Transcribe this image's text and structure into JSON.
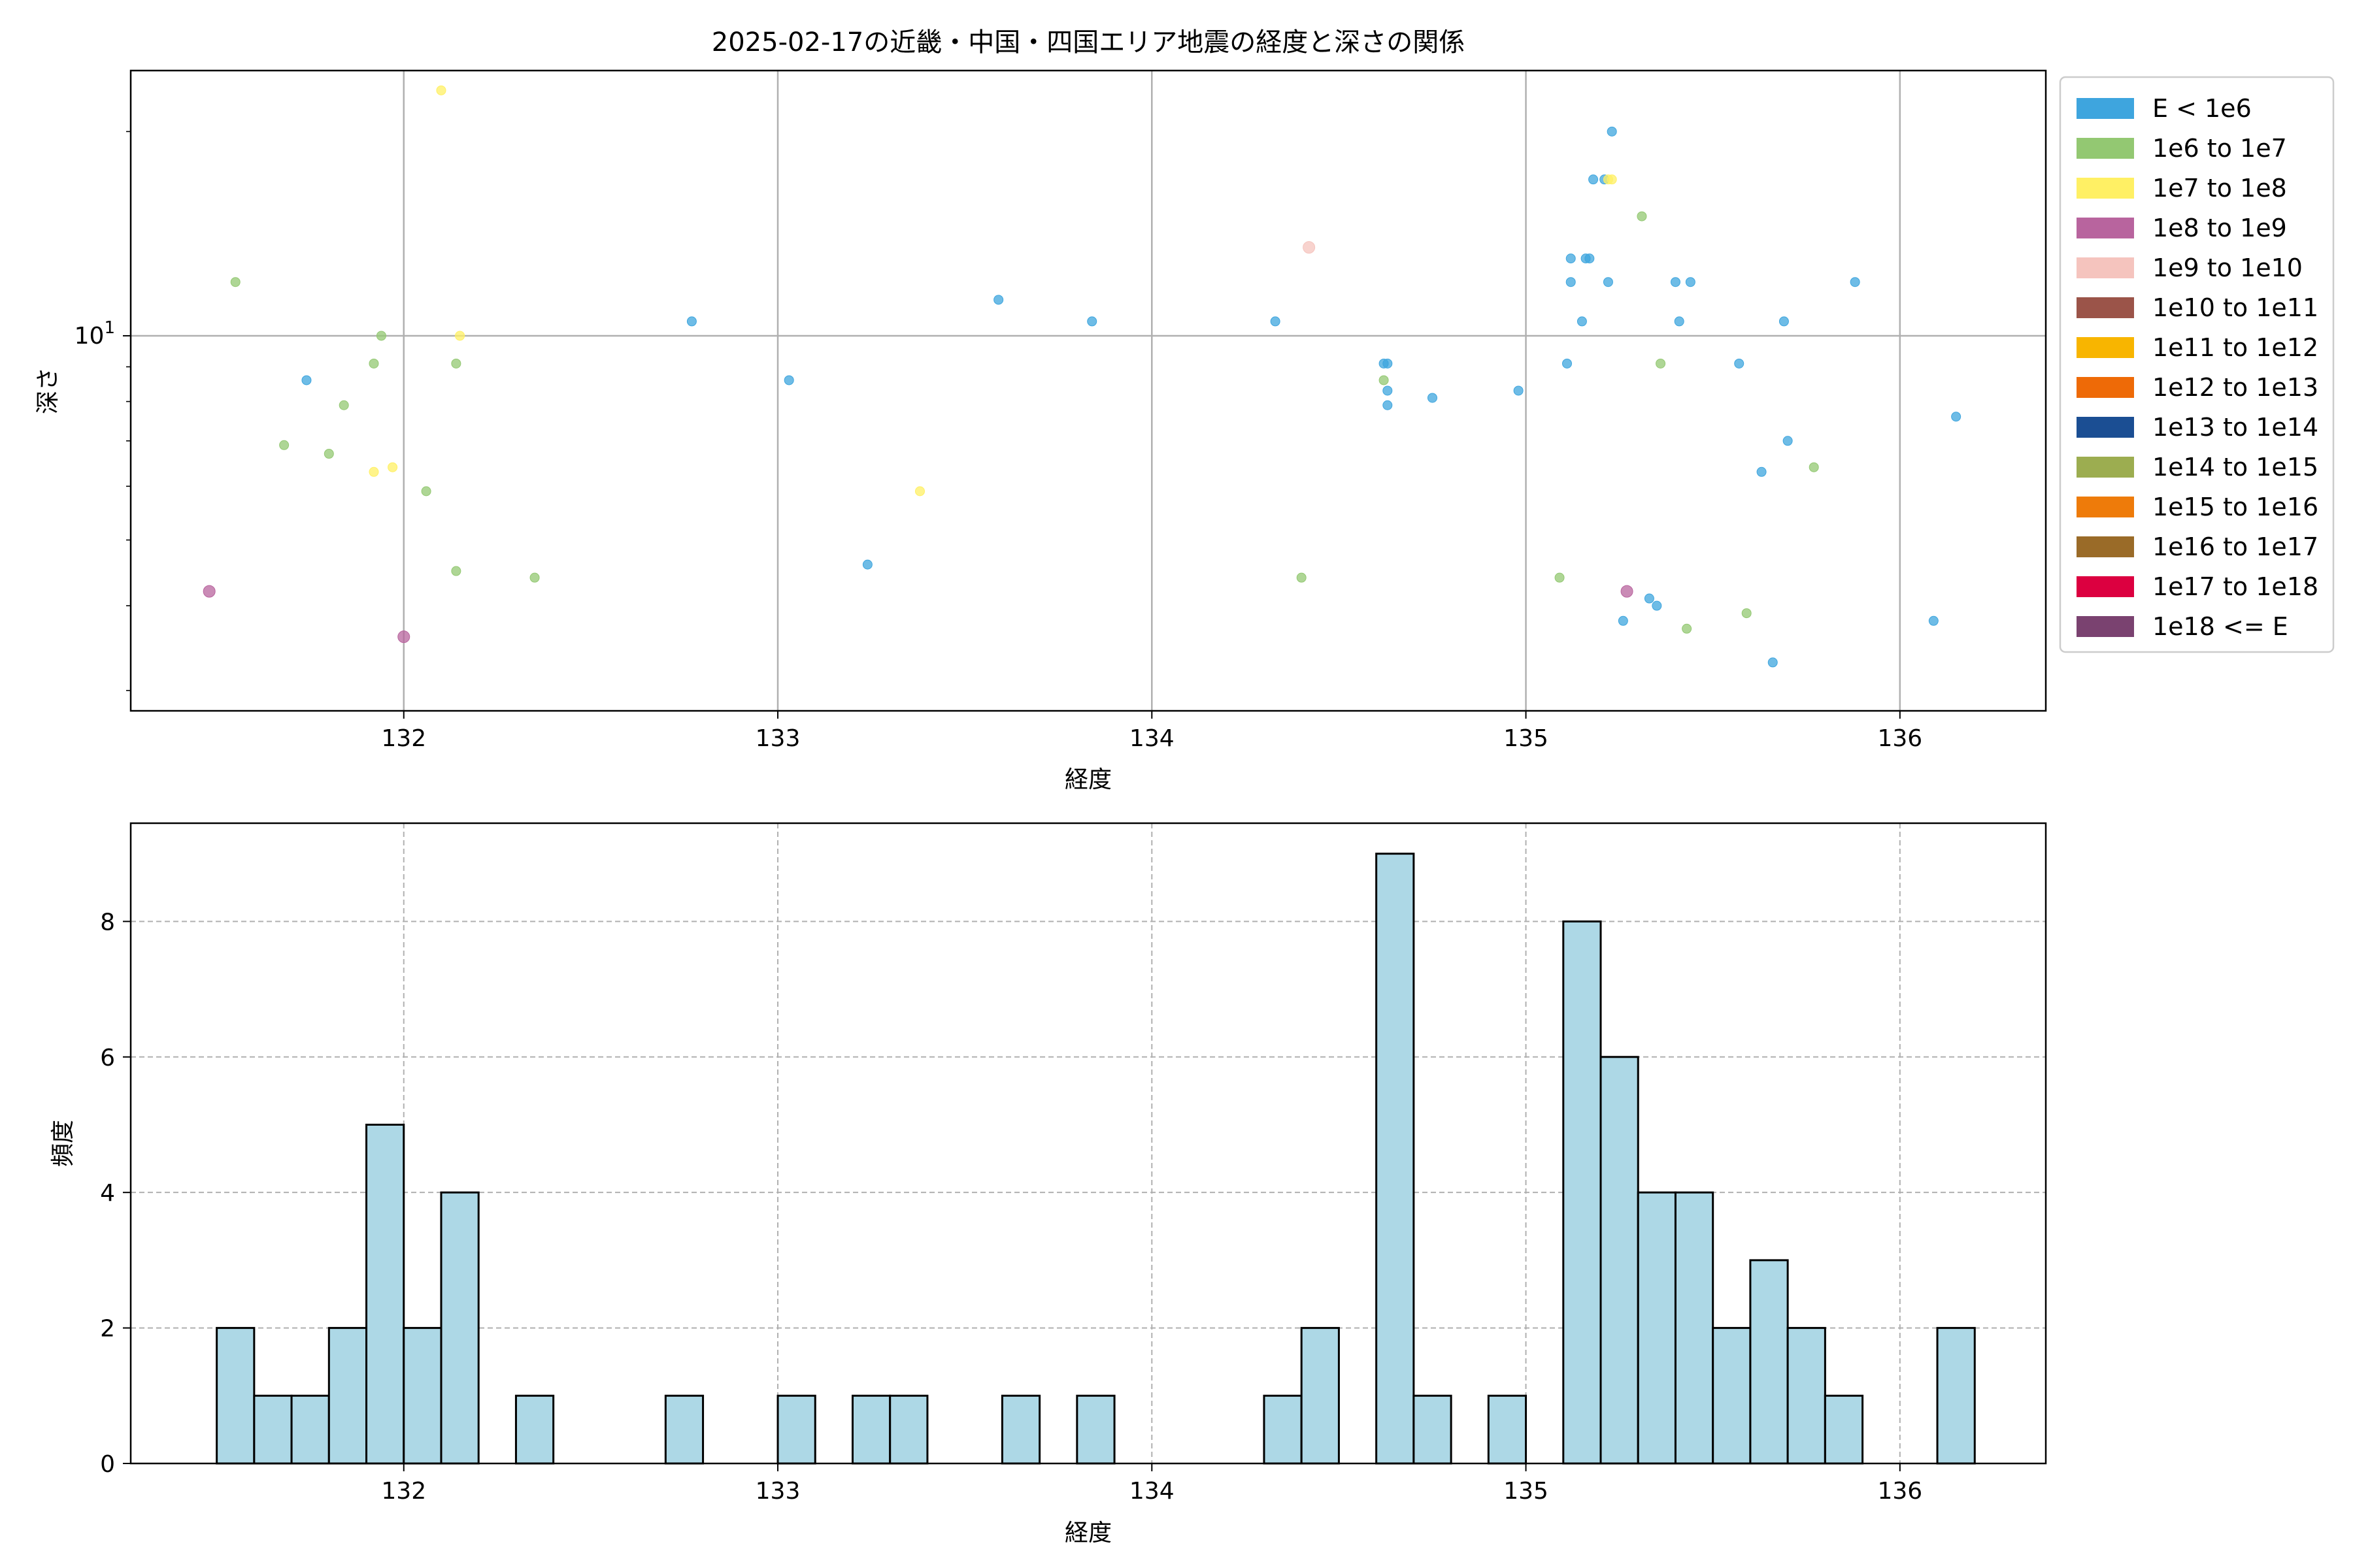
{
  "chart_data": [
    {
      "type": "scatter",
      "title": "2025-02-17の近畿・中国・四国エリア地震の経度と深さの関係",
      "xlabel": "経度",
      "ylabel": "深さ",
      "xlim": [
        131.27,
        136.39
      ],
      "ylim": [
        2.8,
        24.6
      ],
      "yscale": "log",
      "y_tick_label": "10",
      "y_tick_sup": "1",
      "grid": true,
      "legend_position": "outside-right",
      "legend": [
        {
          "label": "E < 1e6",
          "color": "#3ea5de"
        },
        {
          "label": "1e6 to 1e7",
          "color": "#93c872"
        },
        {
          "label": "1e7 to 1e8",
          "color": "#fff064"
        },
        {
          "label": "1e8 to 1e9",
          "color": "#b8649e"
        },
        {
          "label": "1e9 to 1e10",
          "color": "#f5c4be"
        },
        {
          "label": "1e10 to 1e11",
          "color": "#9b5449"
        },
        {
          "label": "1e11 to 1e12",
          "color": "#f8b500"
        },
        {
          "label": "1e12 to 1e13",
          "color": "#ee6a07"
        },
        {
          "label": "1e13 to 1e14",
          "color": "#1b4e93"
        },
        {
          "label": "1e14 to 1e15",
          "color": "#9cad50"
        },
        {
          "label": "1e15 to 1e16",
          "color": "#ee7b0a"
        },
        {
          "label": "1e16 to 1e17",
          "color": "#9a6b28"
        },
        {
          "label": "1e17 to 1e18",
          "color": "#dc0040"
        },
        {
          "label": "1e18 <= E",
          "color": "#7a4270"
        }
      ],
      "series": [
        {
          "class": 0,
          "points": [
            [
              131.74,
              8.6
            ],
            [
              132.77,
              10.5
            ],
            [
              133.03,
              8.6
            ],
            [
              133.24,
              4.6
            ],
            [
              133.59,
              11.3
            ],
            [
              133.84,
              10.5
            ],
            [
              134.33,
              10.5
            ],
            [
              134.62,
              9.1
            ],
            [
              134.63,
              9.1
            ],
            [
              134.63,
              8.3
            ],
            [
              134.63,
              7.9
            ],
            [
              134.75,
              8.1
            ],
            [
              134.98,
              8.3
            ],
            [
              135.11,
              9.1
            ],
            [
              135.12,
              12.0
            ],
            [
              135.12,
              13.0
            ],
            [
              135.15,
              10.5
            ],
            [
              135.16,
              13.0
            ],
            [
              135.17,
              13.0
            ],
            [
              135.18,
              17.0
            ],
            [
              135.21,
              17.0
            ],
            [
              135.22,
              12.0
            ],
            [
              135.23,
              20.0
            ],
            [
              135.26,
              3.8
            ],
            [
              135.33,
              4.1
            ],
            [
              135.35,
              4.0
            ],
            [
              135.4,
              12.0
            ],
            [
              135.41,
              10.5
            ],
            [
              135.44,
              12.0
            ],
            [
              135.57,
              9.1
            ],
            [
              135.63,
              6.3
            ],
            [
              135.66,
              3.3
            ],
            [
              135.69,
              10.5
            ],
            [
              135.7,
              7.0
            ],
            [
              135.88,
              12.0
            ],
            [
              136.09,
              3.8
            ],
            [
              136.15,
              7.6
            ]
          ]
        },
        {
          "class": 1,
          "points": [
            [
              131.55,
              12.0
            ],
            [
              131.68,
              6.9
            ],
            [
              131.8,
              6.7
            ],
            [
              131.84,
              7.9
            ],
            [
              131.92,
              9.1
            ],
            [
              131.94,
              10.0
            ],
            [
              132.06,
              5.9
            ],
            [
              132.14,
              9.1
            ],
            [
              132.14,
              4.5
            ],
            [
              132.35,
              4.4
            ],
            [
              134.4,
              4.4
            ],
            [
              134.62,
              8.6
            ],
            [
              135.09,
              4.4
            ],
            [
              135.31,
              15.0
            ],
            [
              135.36,
              9.1
            ],
            [
              135.43,
              3.7
            ],
            [
              135.59,
              3.9
            ],
            [
              135.77,
              6.4
            ]
          ]
        },
        {
          "class": 2,
          "points": [
            [
              131.92,
              6.3
            ],
            [
              131.97,
              6.4
            ],
            [
              132.1,
              23.0
            ],
            [
              132.15,
              10.0
            ],
            [
              133.38,
              5.9
            ],
            [
              135.22,
              17.0
            ],
            [
              135.23,
              17.0
            ]
          ]
        },
        {
          "class": 3,
          "points": [
            [
              131.48,
              4.2
            ],
            [
              132.0,
              3.6
            ],
            [
              135.27,
              4.2
            ]
          ]
        },
        {
          "class": 4,
          "points": [
            [
              134.42,
              13.5
            ]
          ]
        }
      ]
    },
    {
      "type": "bar",
      "title": "",
      "xlabel": "経度",
      "ylabel": "頻度",
      "xlim": [
        131.27,
        136.39
      ],
      "ylim": [
        0,
        9.45
      ],
      "bin_width": 0.1,
      "bar_color": "#add8e6",
      "edge_color": "#000000",
      "grid": true,
      "bins": [
        {
          "x": 131.5,
          "count": 2
        },
        {
          "x": 131.6,
          "count": 1
        },
        {
          "x": 131.7,
          "count": 1
        },
        {
          "x": 131.8,
          "count": 2
        },
        {
          "x": 131.9,
          "count": 5
        },
        {
          "x": 132.0,
          "count": 2
        },
        {
          "x": 132.1,
          "count": 4
        },
        {
          "x": 132.3,
          "count": 1
        },
        {
          "x": 132.7,
          "count": 1
        },
        {
          "x": 133.0,
          "count": 1
        },
        {
          "x": 133.2,
          "count": 1
        },
        {
          "x": 133.3,
          "count": 1
        },
        {
          "x": 133.6,
          "count": 1
        },
        {
          "x": 133.8,
          "count": 1
        },
        {
          "x": 134.3,
          "count": 1
        },
        {
          "x": 134.4,
          "count": 2
        },
        {
          "x": 134.6,
          "count": 9
        },
        {
          "x": 134.7,
          "count": 1
        },
        {
          "x": 134.9,
          "count": 1
        },
        {
          "x": 135.1,
          "count": 8
        },
        {
          "x": 135.2,
          "count": 6
        },
        {
          "x": 135.3,
          "count": 4
        },
        {
          "x": 135.4,
          "count": 4
        },
        {
          "x": 135.5,
          "count": 2
        },
        {
          "x": 135.6,
          "count": 3
        },
        {
          "x": 135.7,
          "count": 2
        },
        {
          "x": 135.8,
          "count": 1
        },
        {
          "x": 136.1,
          "count": 2
        }
      ]
    }
  ],
  "x_ticks": [
    132,
    133,
    134,
    135,
    136
  ],
  "hist_y_ticks": [
    0,
    2,
    4,
    6,
    8
  ]
}
